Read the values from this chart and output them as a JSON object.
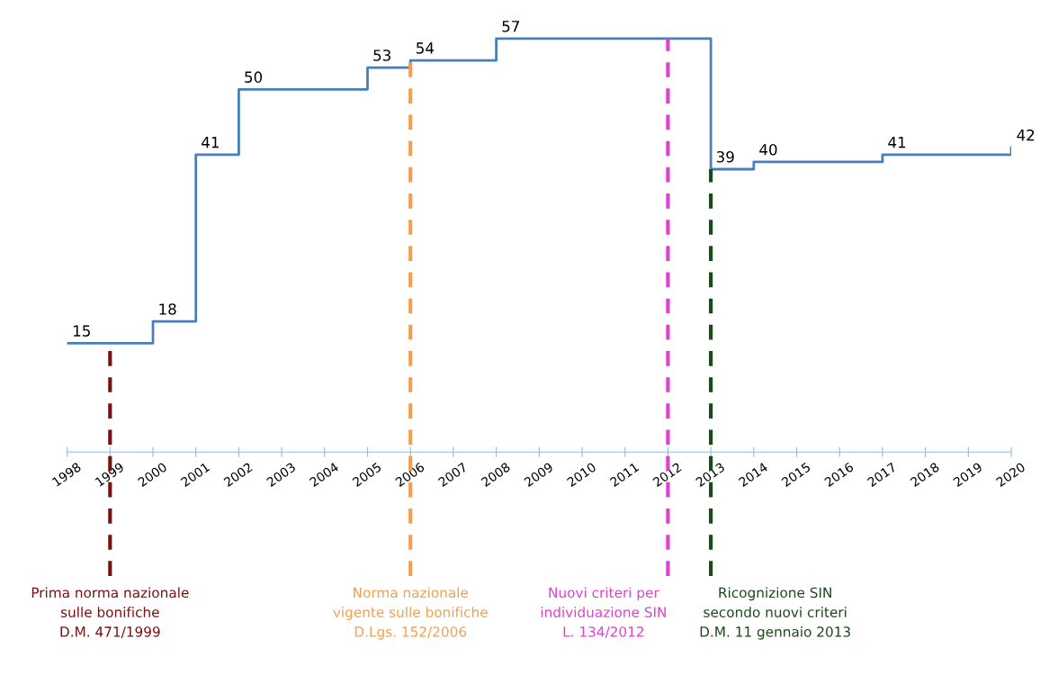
{
  "chart_data": {
    "type": "step",
    "x": [
      1998,
      2000,
      2001,
      2002,
      2005,
      2006,
      2008,
      2013,
      2014,
      2017,
      2020
    ],
    "series": [
      {
        "color": "#4a7ebb",
        "values": [
          15,
          18,
          41,
          50,
          53,
          54,
          57,
          39,
          40,
          41,
          42
        ]
      }
    ],
    "data_labels": true,
    "xlim": [
      1998,
      2020
    ],
    "xticks": [
      1998,
      1999,
      2000,
      2001,
      2002,
      2003,
      2004,
      2005,
      2006,
      2007,
      2008,
      2009,
      2010,
      2011,
      2012,
      2013,
      2014,
      2015,
      2016,
      2017,
      2018,
      2019,
      2020
    ],
    "tick_labels": "x",
    "grid": false,
    "legend": false,
    "line_style": "solid",
    "marker": "none",
    "ref_lines": [
      {
        "axis": "x",
        "value": 1999,
        "label": "Prima norma nazionale\nsulle bonifiche\nD.M. 471/1999",
        "color": "#7b1010",
        "line_style": "dashed"
      },
      {
        "axis": "x",
        "value": 2006,
        "label": "Norma nazionale\nvigente sulle bonifiche\nD.Lgs. 152/2006",
        "color": "#f0a050",
        "line_style": "dashed"
      },
      {
        "axis": "x",
        "value": 2012,
        "label": "Nuovi criteri per\nindividuazione SIN\nL. 134/2012",
        "color": "#e040d0",
        "line_style": "dashed"
      },
      {
        "axis": "x",
        "value": 2013,
        "label": "Ricognizione SIN\nsecondo nuovi criteri\nD.M. 11 gennaio 2013",
        "color": "#1a4a1a",
        "line_style": "dashed"
      }
    ]
  }
}
